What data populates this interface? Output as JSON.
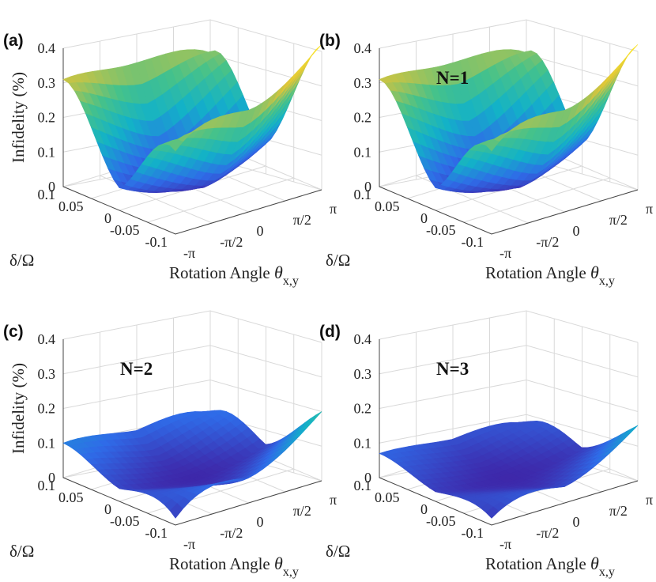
{
  "chart_data": [
    {
      "type": "surface",
      "panel_label": "(a)",
      "annotation": "",
      "zlabel": "Infidelity (%)",
      "xlabel": "Rotation Angle",
      "xlabel_symbol": "θ",
      "xlabel_subscript": "x,y",
      "ylabel": "δ/Ω",
      "xticks": [
        "-π",
        "-π/2",
        "0",
        "π/2",
        "π"
      ],
      "yticks": [
        "-0.1",
        "-0.05",
        "0",
        "0.05",
        "0.1"
      ],
      "zticks": [
        "0",
        "0.1",
        "0.2",
        "0.3",
        "0.4"
      ],
      "x_range": [
        -3.1416,
        3.1416
      ],
      "y_range": [
        -0.1,
        0.1
      ],
      "zlim": [
        0,
        0.4
      ],
      "surface_model": {
        "theta_coef": 0.0062,
        "delta_coef": 29.0,
        "floor": 0.004,
        "cross_coef": 0.0
      },
      "corner_values": {
        "theta=-pi,delta=0.1": 0.31,
        "theta=pi,delta=0.1": 0.26,
        "theta=pi,delta=-0.1": 0.42,
        "theta=-pi,delta=-0.1": 0.24
      }
    },
    {
      "type": "surface",
      "panel_label": "(b)",
      "annotation": "N=1",
      "zlabel": "",
      "xlabel": "Rotation Angle",
      "xlabel_symbol": "θ",
      "xlabel_subscript": "x,y",
      "ylabel": "δ/Ω",
      "xticks": [
        "-π",
        "-π/2",
        "0",
        "π/2",
        "π"
      ],
      "yticks": [
        "-0.1",
        "-0.05",
        "0",
        "0.05",
        "0.1"
      ],
      "zticks": [
        "0",
        "0.1",
        "0.2",
        "0.3",
        "0.4"
      ],
      "x_range": [
        -3.1416,
        3.1416
      ],
      "y_range": [
        -0.1,
        0.1
      ],
      "zlim": [
        0,
        0.4
      ],
      "surface_model": {
        "theta_coef": 0.0062,
        "delta_coef": 29.0,
        "floor": 0.004,
        "cross_coef": 0.0
      },
      "corner_values": {
        "theta=-pi,delta=0.1": 0.31,
        "theta=pi,delta=0.1": 0.26,
        "theta=pi,delta=-0.1": 0.42,
        "theta=-pi,delta=-0.1": 0.24
      }
    },
    {
      "type": "surface",
      "panel_label": "(c)",
      "annotation": "N=2",
      "zlabel": "Infidelity (%)",
      "xlabel": "Rotation Angle",
      "xlabel_symbol": "θ",
      "xlabel_subscript": "x,y",
      "ylabel": "δ/Ω",
      "xticks": [
        "-π",
        "-π/2",
        "0",
        "π/2",
        "π"
      ],
      "yticks": [
        "-0.1",
        "-0.05",
        "0",
        "0.05",
        "0.1"
      ],
      "zticks": [
        "0",
        "0.1",
        "0.2",
        "0.3",
        "0.4"
      ],
      "x_range": [
        -3.1416,
        3.1416
      ],
      "y_range": [
        -0.1,
        0.1
      ],
      "zlim": [
        0,
        0.4
      ],
      "surface_model": {
        "theta_coef": 0.0035,
        "delta_coef": 7.0,
        "floor": 0.002,
        "cross_coef": 0.08
      },
      "corner_values": {
        "theta=-pi,delta=0.1": 0.1,
        "theta=pi,delta=0.1": 0.06,
        "theta=pi,delta=-0.1": 0.2,
        "theta=-pi,delta=-0.1": 0.02
      }
    },
    {
      "type": "surface",
      "panel_label": "(d)",
      "annotation": "N=3",
      "zlabel": "",
      "xlabel": "Rotation Angle",
      "xlabel_symbol": "θ",
      "xlabel_subscript": "x,y",
      "ylabel": "δ/Ω",
      "xticks": [
        "-π",
        "-π/2",
        "0",
        "π/2",
        "π"
      ],
      "yticks": [
        "-0.1",
        "-0.05",
        "0",
        "0.05",
        "0.1"
      ],
      "zticks": [
        "0",
        "0.1",
        "0.2",
        "0.3",
        "0.4"
      ],
      "x_range": [
        -3.1416,
        3.1416
      ],
      "y_range": [
        -0.1,
        0.1
      ],
      "zlim": [
        0,
        0.4
      ],
      "surface_model": {
        "theta_coef": 0.0026,
        "delta_coef": 4.5,
        "floor": 0.002,
        "cross_coef": 0.06
      },
      "corner_values": {
        "theta=-pi,delta=0.1": 0.07,
        "theta=pi,delta=0.1": 0.03,
        "theta=pi,delta=-0.1": 0.16,
        "theta=-pi,delta=-0.1": 0.02
      }
    }
  ],
  "colors": {
    "low": "#3e26a8",
    "mid1": "#2f6be8",
    "mid2": "#12b2c8",
    "mid3": "#46c28a",
    "high": "#dcc43a",
    "peak": "#f9e22a"
  }
}
